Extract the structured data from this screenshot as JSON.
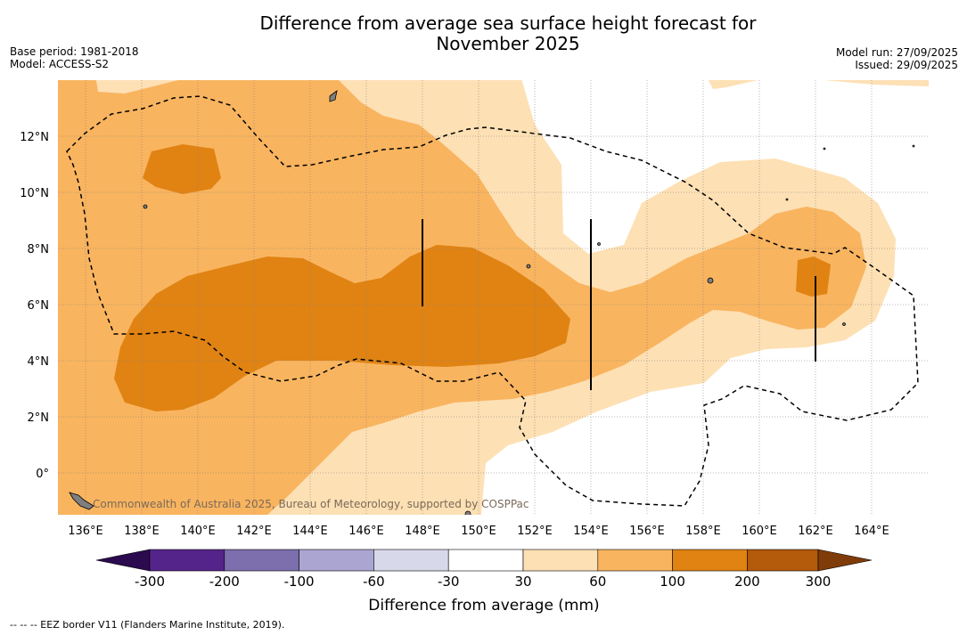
{
  "title_line1": "Difference from average sea surface height forecast for",
  "title_line2": "November 2025",
  "base_period": "Base period: 1981-2018",
  "model": "Model: ACCESS-S2",
  "model_run": "Model run: 27/09/2025",
  "issued": "Issued: 29/09/2025",
  "lat_labels": [
    "12°N",
    "10°N",
    "8°N",
    "6°N",
    "4°N",
    "2°N",
    "0°"
  ],
  "lon_labels": [
    "136°E",
    "138°E",
    "140°E",
    "142°E",
    "144°E",
    "146°E",
    "148°E",
    "150°E",
    "152°E",
    "154°E",
    "156°E",
    "158°E",
    "160°E",
    "162°E",
    "164°E"
  ],
  "copyright": "Commonwealth of Australia 2025, Bureau of Meteorology, supported by COSPPac",
  "colorbar": {
    "title": "Difference from average (mm)",
    "tick_labels": [
      "-300",
      "-200",
      "-100",
      "-60",
      "-30",
      "30",
      "60",
      "100",
      "200",
      "300"
    ],
    "colors": {
      "below_min": "#2b0a4f",
      "n300_n200": "#55248a",
      "n200_n100": "#7d6fad",
      "n100_n60": "#aba6d1",
      "n60_n30": "#d8d8eb",
      "n30_30": "#ffffff",
      "p30_60": "#fde0b4",
      "p60_100": "#f9b45f",
      "p100_200": "#e08313",
      "p200_300": "#b35a0b",
      "above_max": "#7f3c08"
    }
  },
  "footer": "-- -- -- EEZ border V11 (Flanders Marine Institute, 2019)."
}
